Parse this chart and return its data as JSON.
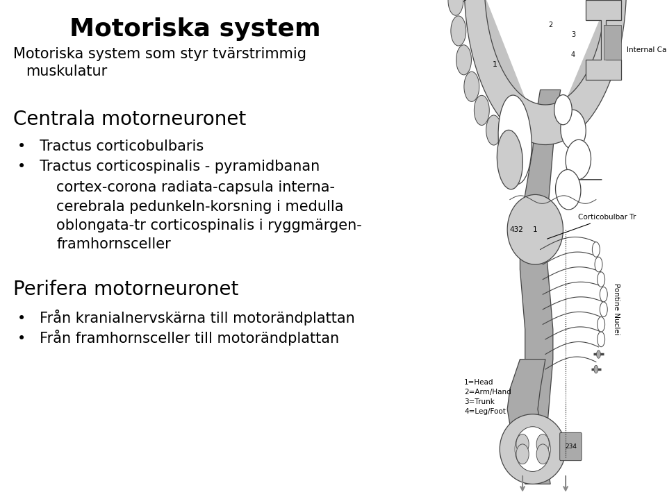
{
  "title": "Motoriska system",
  "subtitle_lines": [
    "Motoriska system som styr tvärstrimmig",
    "    muskulatur"
  ],
  "section1_header": "Centrala motorneuronet",
  "section1_bullets_a": [
    "Tractus corticobulbaris",
    "Tractus corticospinalis - pyramidbanan"
  ],
  "section1_sub": [
    "cortex-corona radiata-capsula interna-",
    "cerebrala pedunkeln-korsning i medulla",
    "oblongata-tr corticospinalis i ryggmärgen-",
    "framhornsceller"
  ],
  "section2_header": "Perifera motorneuronet",
  "section2_bullets": [
    "Från kranialnervskärna till motorändplattan",
    "Från framhornsceller till motorändplattan"
  ],
  "bg_color": "#ffffff",
  "text_color": "#000000",
  "title_fontsize": 26,
  "header_fontsize": 20,
  "body_fontsize": 15,
  "sub_fontsize": 15,
  "diagram_fontsize": 8
}
